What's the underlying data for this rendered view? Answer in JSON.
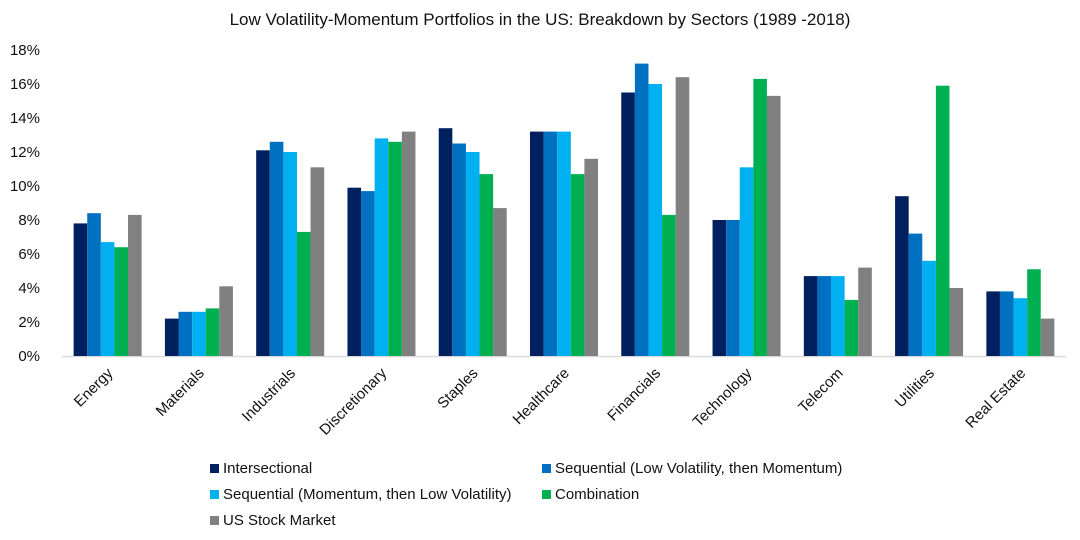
{
  "chart_data": {
    "type": "bar",
    "title": "Low Volatility-Momentum Portfolios in the US: Breakdown by Sectors (1989 -2018)",
    "categories": [
      "Energy",
      "Materials",
      "Industrials",
      "Discretionary",
      "Staples",
      "Healthcare",
      "Financials",
      "Technology",
      "Telecom",
      "Utilities",
      "Real Estate"
    ],
    "ylim": [
      0,
      18
    ],
    "yticks": [
      0,
      2,
      4,
      6,
      8,
      10,
      12,
      14,
      16,
      18
    ],
    "ytick_format": "%",
    "grid": false,
    "legend_position": "bottom",
    "series": [
      {
        "name": "Intersectional",
        "color": "#002060",
        "values": [
          7.8,
          2.2,
          12.1,
          9.9,
          13.4,
          13.2,
          15.5,
          8.0,
          4.7,
          9.4,
          3.8
        ]
      },
      {
        "name": "Sequential (Low Volatility, then Momentum)",
        "color": "#0070C0",
        "values": [
          8.4,
          2.6,
          12.6,
          9.7,
          12.5,
          13.2,
          17.2,
          8.0,
          4.7,
          7.2,
          3.8
        ]
      },
      {
        "name": "Sequential (Momentum, then Low Volatility)",
        "color": "#00B0F0",
        "values": [
          6.7,
          2.6,
          12.0,
          12.8,
          12.0,
          13.2,
          16.0,
          11.1,
          4.7,
          5.6,
          3.4
        ]
      },
      {
        "name": "Combination",
        "color": "#00B050",
        "values": [
          6.4,
          2.8,
          7.3,
          12.6,
          10.7,
          10.7,
          8.3,
          16.3,
          3.3,
          15.9,
          5.1
        ]
      },
      {
        "name": "US Stock Market",
        "color": "#808080",
        "values": [
          8.3,
          4.1,
          11.1,
          13.2,
          8.7,
          11.6,
          16.4,
          15.3,
          5.2,
          4.0,
          2.2
        ]
      }
    ]
  }
}
